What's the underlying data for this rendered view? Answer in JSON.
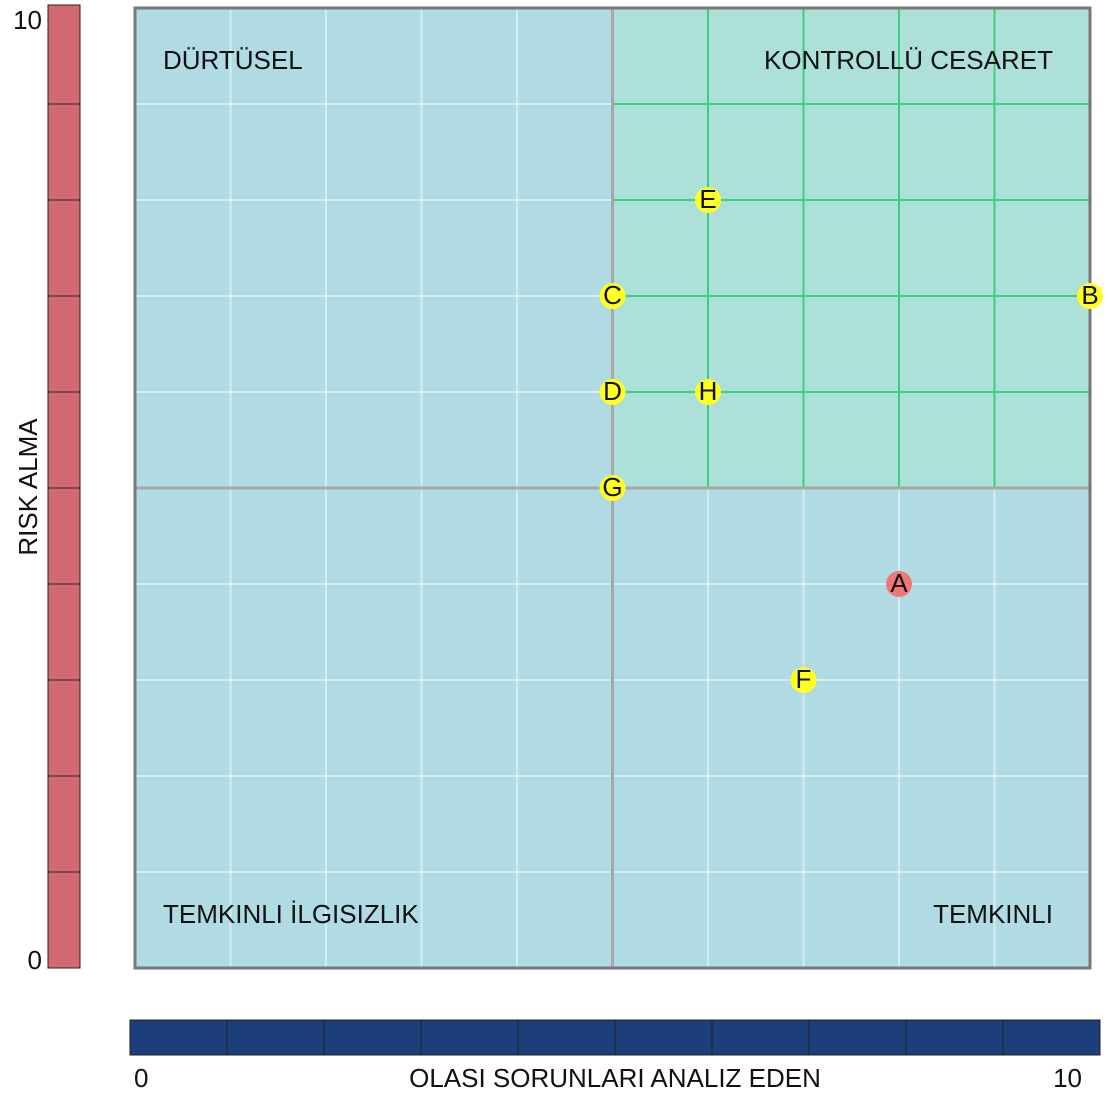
{
  "chart_data": {
    "type": "scatter",
    "xlabel": "OLASI SORUNLARI ANALIZ EDEN",
    "ylabel": "RISK ALMA",
    "xlim": [
      0,
      10
    ],
    "ylim": [
      0,
      10
    ],
    "xticks": [
      0,
      10
    ],
    "yticks": [
      0,
      10
    ],
    "grid": true,
    "x_bar_color": "#1c3f7c",
    "y_bar_color": "#d06970",
    "background_color": "#b1dbe4",
    "highlight": {
      "corner": "top-right",
      "color": "#ade0d8",
      "grid_color": "#3ecf7e"
    },
    "quadrants": [
      {
        "label": "DÜRTÜSEL",
        "corner": "top-left"
      },
      {
        "label": "KONTROLLÜ CESARET",
        "corner": "top-right"
      },
      {
        "label": "TEMKINLI İLGISIZLIK",
        "corner": "bottom-left"
      },
      {
        "label": "TEMKINLI",
        "corner": "bottom-right"
      }
    ],
    "points": [
      {
        "label": "A",
        "x": 8,
        "y": 4,
        "color": "#ee7777"
      },
      {
        "label": "B",
        "x": 10,
        "y": 7,
        "color": "#ffff22"
      },
      {
        "label": "C",
        "x": 5,
        "y": 7,
        "color": "#ffff22"
      },
      {
        "label": "D",
        "x": 5,
        "y": 6,
        "color": "#ffff22"
      },
      {
        "label": "E",
        "x": 6,
        "y": 8,
        "color": "#ffff22"
      },
      {
        "label": "F",
        "x": 7,
        "y": 3,
        "color": "#ffff22"
      },
      {
        "label": "G",
        "x": 5,
        "y": 5,
        "color": "#ffff22"
      },
      {
        "label": "H",
        "x": 6,
        "y": 6,
        "color": "#ffff22"
      }
    ]
  }
}
